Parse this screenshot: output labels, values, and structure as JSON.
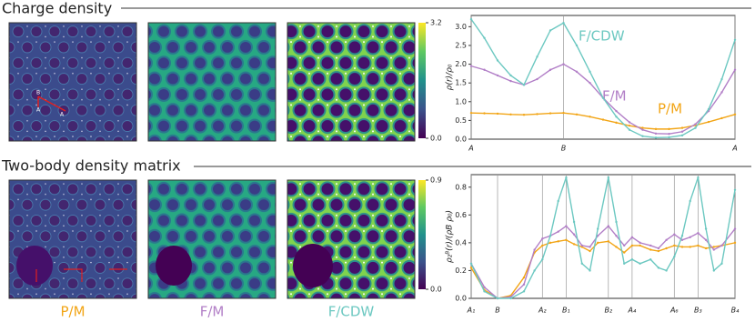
{
  "titles": {
    "charge": "Charge density",
    "two_body": "Two-body density matrix"
  },
  "map_labels": [
    "P/M",
    "F/M",
    "F/CDW"
  ],
  "map_annotations": [
    "B",
    "A",
    "A"
  ],
  "colorbars": [
    {
      "lim": [
        0,
        3.2
      ],
      "ticks": [
        {
          "value": 0,
          "label": "0.0"
        },
        {
          "value": 3.2,
          "label": "3.2"
        }
      ]
    },
    {
      "lim": [
        0,
        0.9
      ],
      "ticks": [
        {
          "value": 0,
          "label": "0.0"
        },
        {
          "value": 0.9,
          "label": "0.9"
        }
      ]
    }
  ],
  "chart_data": [
    {
      "type": "line",
      "ylabel": "ρ(r)/ρ₀",
      "grid": true,
      "x": [
        0,
        0.05,
        0.1,
        0.15,
        0.2,
        0.25,
        0.3,
        0.35,
        0.4,
        0.45,
        0.5,
        0.55,
        0.6,
        0.65,
        0.7,
        0.75,
        0.8,
        0.85,
        0.9,
        0.95,
        1
      ],
      "xlim": [
        0,
        1
      ],
      "xticks": [
        {
          "value": 0,
          "label": "A"
        },
        {
          "value": 0.35,
          "label": "B"
        },
        {
          "value": 1,
          "label": "A"
        }
      ],
      "ylim": [
        0,
        3.3
      ],
      "yticks": [
        {
          "value": 0,
          "label": "0.0"
        },
        {
          "value": 0.5,
          "label": "0.5"
        },
        {
          "value": 1,
          "label": "1.0"
        },
        {
          "value": 1.5,
          "label": "1.5"
        },
        {
          "value": 2,
          "label": "2.0"
        },
        {
          "value": 2.5,
          "label": "2.5"
        },
        {
          "value": 3,
          "label": "3.0"
        }
      ],
      "series": [
        {
          "name": "P/M",
          "color": "#f2a516",
          "values": [
            0.7,
            0.69,
            0.68,
            0.66,
            0.65,
            0.67,
            0.69,
            0.7,
            0.66,
            0.6,
            0.52,
            0.44,
            0.36,
            0.3,
            0.27,
            0.27,
            0.3,
            0.37,
            0.46,
            0.56,
            0.66
          ]
        },
        {
          "name": "F/M",
          "color": "#b27fc7",
          "values": [
            1.95,
            1.85,
            1.7,
            1.55,
            1.45,
            1.6,
            1.85,
            2.0,
            1.8,
            1.5,
            1.1,
            0.75,
            0.45,
            0.25,
            0.15,
            0.14,
            0.2,
            0.4,
            0.75,
            1.25,
            1.85
          ]
        },
        {
          "name": "F/CDW",
          "color": "#6cc8c1",
          "values": [
            3.2,
            2.7,
            2.1,
            1.7,
            1.45,
            2.2,
            2.9,
            3.1,
            2.5,
            1.8,
            1.1,
            0.6,
            0.25,
            0.08,
            0.04,
            0.05,
            0.1,
            0.3,
            0.8,
            1.6,
            2.65
          ]
        }
      ]
    },
    {
      "type": "line",
      "ylabel": "ρ₂ᴮ(r)/(ρB ρ₀)",
      "grid": true,
      "x": [
        0,
        0.5,
        1,
        1.5,
        2,
        2.4,
        2.7,
        3.0,
        3.3,
        3.6,
        3.9,
        4.2,
        4.5,
        4.8,
        5.2,
        5.5,
        5.8,
        6.1,
        6.4,
        6.8,
        7.1,
        7.4,
        7.7,
        8.0,
        8.3,
        8.6,
        8.9,
        9.2,
        9.5,
        10
      ],
      "xlim": [
        0,
        10
      ],
      "xticks": [
        {
          "value": 0,
          "label": "A₁"
        },
        {
          "value": 1,
          "label": "B"
        },
        {
          "value": 2.7,
          "label": "A₂"
        },
        {
          "value": 3.6,
          "label": "B₁"
        },
        {
          "value": 5.2,
          "label": "B₂"
        },
        {
          "value": 6.1,
          "label": "A₄"
        },
        {
          "value": 7.7,
          "label": "A₆"
        },
        {
          "value": 8.6,
          "label": "B₃"
        },
        {
          "value": 10,
          "label": "B₄"
        }
      ],
      "ylim": [
        0,
        0.89
      ],
      "yticks": [
        {
          "value": 0,
          "label": "0.0"
        },
        {
          "value": 0.2,
          "label": "0.2"
        },
        {
          "value": 0.4,
          "label": "0.4"
        },
        {
          "value": 0.6,
          "label": "0.6"
        },
        {
          "value": 0.8,
          "label": "0.8"
        }
      ],
      "series": [
        {
          "name": "P/M",
          "color": "#f2a516",
          "values": [
            0.22,
            0.06,
            0.0,
            0.02,
            0.15,
            0.33,
            0.38,
            0.4,
            0.41,
            0.42,
            0.39,
            0.37,
            0.34,
            0.4,
            0.41,
            0.37,
            0.33,
            0.38,
            0.38,
            0.35,
            0.34,
            0.36,
            0.38,
            0.37,
            0.37,
            0.38,
            0.36,
            0.37,
            0.38,
            0.4
          ]
        },
        {
          "name": "F/M",
          "color": "#b27fc7",
          "values": [
            0.25,
            0.08,
            0.0,
            0.01,
            0.1,
            0.35,
            0.43,
            0.45,
            0.48,
            0.52,
            0.46,
            0.38,
            0.37,
            0.45,
            0.52,
            0.45,
            0.38,
            0.44,
            0.4,
            0.38,
            0.36,
            0.42,
            0.46,
            0.42,
            0.44,
            0.47,
            0.42,
            0.35,
            0.38,
            0.5
          ]
        },
        {
          "name": "F/CDW",
          "color": "#6cc8c1",
          "values": [
            0.25,
            0.05,
            0.0,
            0.0,
            0.05,
            0.2,
            0.28,
            0.45,
            0.7,
            0.87,
            0.55,
            0.25,
            0.2,
            0.5,
            0.87,
            0.55,
            0.25,
            0.28,
            0.25,
            0.28,
            0.22,
            0.2,
            0.3,
            0.45,
            0.7,
            0.87,
            0.5,
            0.2,
            0.25,
            0.78
          ]
        }
      ]
    }
  ]
}
